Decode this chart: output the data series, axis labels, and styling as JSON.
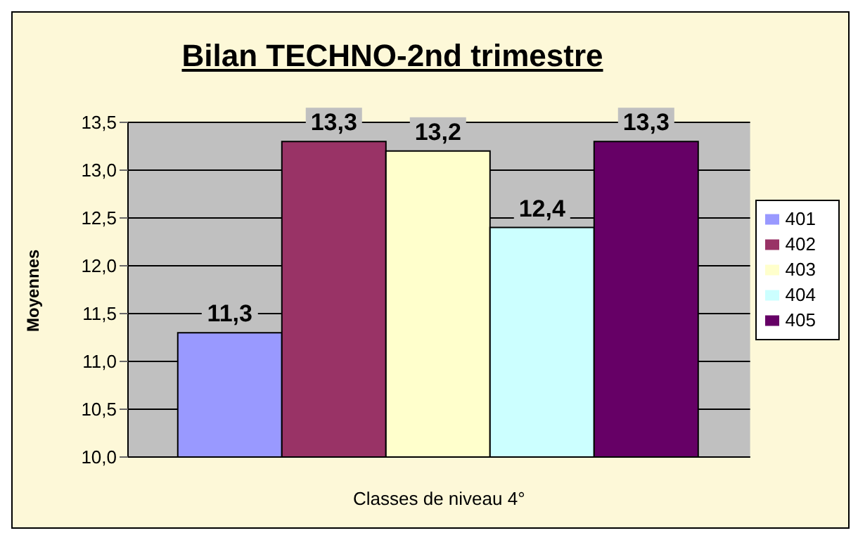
{
  "chart_data": {
    "type": "bar",
    "title": "Bilan TECHNO-2nd trimestre",
    "xlabel": "Classes de niveau 4°",
    "ylabel": "Moyennes",
    "categories": [
      null
    ],
    "series": [
      {
        "name": "401",
        "color": "#9999ff",
        "values": [
          11.3
        ],
        "value_labels": [
          "11,3"
        ]
      },
      {
        "name": "402",
        "color": "#993366",
        "values": [
          13.3
        ],
        "value_labels": [
          "13,3"
        ]
      },
      {
        "name": "403",
        "color": "#ffffcc",
        "values": [
          13.2
        ],
        "value_labels": [
          "13,2"
        ]
      },
      {
        "name": "404",
        "color": "#ccffff",
        "values": [
          12.4
        ],
        "value_labels": [
          "12,4"
        ]
      },
      {
        "name": "405",
        "color": "#660066",
        "values": [
          13.3
        ],
        "value_labels": [
          "13,3"
        ]
      }
    ],
    "ylim": [
      10,
      13.5
    ],
    "yticks": [
      {
        "value": 10,
        "label": "10,0"
      },
      {
        "value": 10.5,
        "label": "10,5"
      },
      {
        "value": 11,
        "label": "11,0"
      },
      {
        "value": 11.5,
        "label": "11,5"
      },
      {
        "value": 12,
        "label": "12,0"
      },
      {
        "value": 12.5,
        "label": "12,5"
      },
      {
        "value": 13,
        "label": "13,0"
      },
      {
        "value": 13.5,
        "label": "13,5"
      }
    ],
    "grid": "y",
    "legend": "right"
  }
}
